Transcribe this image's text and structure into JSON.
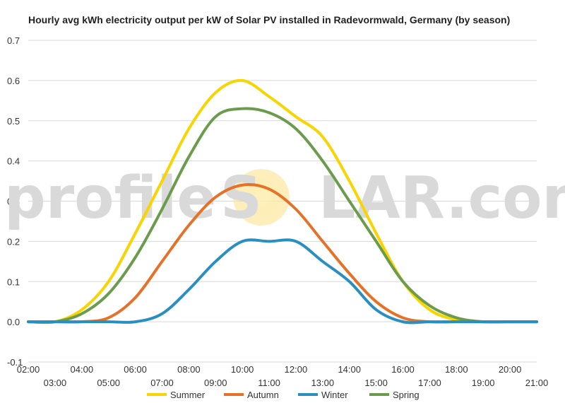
{
  "title": "Hourly avg kWh electricity output per kW of Solar PV installed in Radevormwald, Germany (by season)",
  "watermark": {
    "left": "profile",
    "s": "S",
    "right": "LAR.com",
    "gray": "#d9d9d9",
    "sun_color": "#fbe9a0"
  },
  "chart_data": {
    "type": "line",
    "title": "Hourly avg kWh electricity output per kW of Solar PV installed in Radevormwald, Germany (by season)",
    "xlabel": "",
    "ylabel": "",
    "x": [
      2,
      3,
      4,
      5,
      6,
      7,
      8,
      9,
      10,
      11,
      12,
      13,
      14,
      15,
      16,
      17,
      18,
      19,
      20,
      21
    ],
    "x_ticks_upper": [
      "02:00",
      "04:00",
      "06:00",
      "08:00",
      "10:00",
      "12:00",
      "14:00",
      "16:00",
      "18:00",
      "20:00"
    ],
    "x_ticks_lower": [
      "03:00",
      "05:00",
      "07:00",
      "09:00",
      "11:00",
      "13:00",
      "15:00",
      "17:00",
      "19:00",
      "21:00"
    ],
    "ylim": [
      -0.1,
      0.7
    ],
    "y_ticks": [
      "-0.1",
      "0.0",
      "0.1",
      "0.2",
      "0.3",
      "0.4",
      "0.5",
      "0.6",
      "0.7"
    ],
    "grid": true,
    "legend_position": "bottom-center",
    "series": [
      {
        "name": "Summer",
        "color": "#f8d400",
        "values": [
          0.0,
          0.0,
          0.03,
          0.1,
          0.22,
          0.35,
          0.48,
          0.57,
          0.6,
          0.56,
          0.51,
          0.46,
          0.35,
          0.22,
          0.1,
          0.03,
          0.005,
          0.0,
          0.0,
          0.0
        ]
      },
      {
        "name": "Autumn",
        "color": "#e6722a",
        "values": [
          0.0,
          0.0,
          0.0,
          0.01,
          0.06,
          0.15,
          0.24,
          0.31,
          0.34,
          0.33,
          0.28,
          0.2,
          0.12,
          0.05,
          0.01,
          0.0,
          0.0,
          0.0,
          0.0,
          0.0
        ]
      },
      {
        "name": "Winter",
        "color": "#2a8fc0",
        "values": [
          0.0,
          0.0,
          0.0,
          0.0,
          0.0,
          0.02,
          0.08,
          0.15,
          0.2,
          0.2,
          0.2,
          0.15,
          0.1,
          0.03,
          0.0,
          0.0,
          0.0,
          0.0,
          0.0,
          0.0
        ]
      },
      {
        "name": "Spring",
        "color": "#6b9c4e",
        "values": [
          0.0,
          0.0,
          0.02,
          0.07,
          0.16,
          0.28,
          0.41,
          0.51,
          0.53,
          0.52,
          0.48,
          0.4,
          0.3,
          0.2,
          0.1,
          0.04,
          0.01,
          0.0,
          0.0,
          0.0
        ]
      }
    ]
  }
}
